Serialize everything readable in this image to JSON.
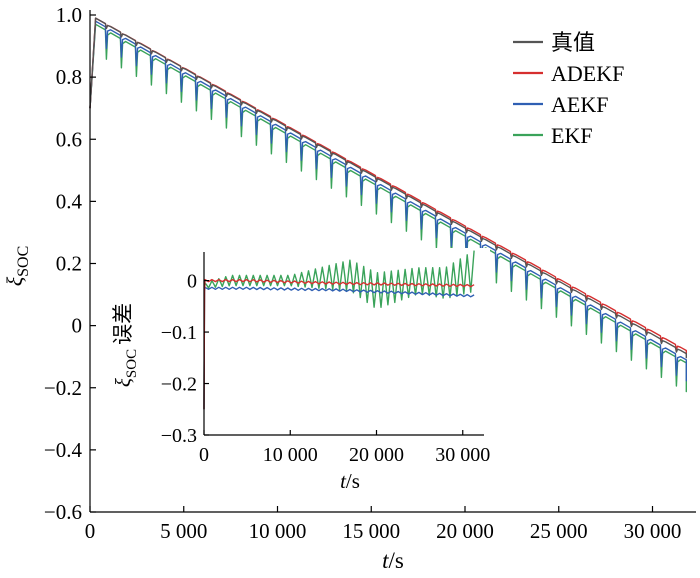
{
  "chart_data": [
    {
      "id": "main",
      "type": "line",
      "title": "",
      "xlabel": {
        "italic": "t",
        "rest": "/s"
      },
      "ylabel": {
        "symbol": "ξ",
        "subscript": "SOC"
      },
      "xlim": [
        0,
        32000
      ],
      "ylim": [
        -0.6,
        1.0
      ],
      "xticks": [
        0,
        5000,
        10000,
        15000,
        20000,
        25000,
        30000
      ],
      "xtick_labels": [
        "0",
        "5 000",
        "10 000",
        "15 000",
        "20 000",
        "25 000",
        "30 000"
      ],
      "yticks": [
        1.0,
        0.8,
        0.6,
        0.4,
        0.2,
        0,
        -0.2,
        -0.4,
        -0.6
      ],
      "ytick_labels": [
        "1.0",
        "0.8",
        "0.6",
        "0.4",
        "0.2",
        "0",
        "−0.2",
        "−0.4",
        "−0.6"
      ],
      "grid": false,
      "legend": "top-right",
      "cycle_period_s": 800,
      "series": [
        {
          "name": "真值",
          "color": "#555555",
          "x": [
            0,
            300,
            31800
          ],
          "y": [
            0.7,
            0.99,
            -0.09
          ]
        },
        {
          "name": "ADEKF",
          "color": "#d62f2f",
          "x": [
            0,
            300,
            31800
          ],
          "y": [
            0.7,
            0.99,
            -0.08
          ]
        },
        {
          "name": "AEKF",
          "color": "#2f5fb3",
          "x": [
            0,
            300,
            31800
          ],
          "y": [
            0.7,
            0.98,
            -0.11
          ]
        },
        {
          "name": "EKF",
          "color": "#3aa35a",
          "x": [
            0,
            300,
            31800
          ],
          "y": [
            0.7,
            0.97,
            -0.12
          ]
        }
      ]
    },
    {
      "id": "inset",
      "type": "line",
      "title": "",
      "xlabel": {
        "italic": "t",
        "rest": "/s"
      },
      "ylabel": {
        "symbol": "ξ",
        "subscript": "SOC",
        "suffix": "误差"
      },
      "xlim": [
        0,
        32000
      ],
      "ylim": [
        -0.3,
        0.04
      ],
      "xticks": [
        0,
        10000,
        20000,
        30000
      ],
      "xtick_labels": [
        "0",
        "10 000",
        "20 000",
        "30 000"
      ],
      "yticks": [
        0,
        -0.1,
        -0.2,
        -0.3
      ],
      "ytick_labels": [
        "0",
        "−0.1",
        "−0.2",
        "−0.3"
      ],
      "grid": false,
      "series": [
        {
          "name": "ADEKF",
          "color": "#d62f2f",
          "x": [
            0,
            5000,
            15000,
            25000,
            31500
          ],
          "y": [
            0.0,
            0.0,
            -0.005,
            -0.008,
            -0.01
          ]
        },
        {
          "name": "AEKF",
          "color": "#2f5fb3",
          "x": [
            0,
            5000,
            15000,
            25000,
            31500
          ],
          "y": [
            -0.015,
            -0.015,
            -0.018,
            -0.025,
            -0.03
          ]
        },
        {
          "name": "EKF",
          "color": "#3aa35a",
          "x": [
            0,
            3000,
            10000,
            17000,
            20000,
            25000,
            28000,
            31500
          ],
          "y": [
            -0.01,
            0.0,
            0.0,
            0.01,
            -0.02,
            0.0,
            -0.005,
            0.02
          ],
          "ripple": [
            0.005,
            0.01,
            0.01,
            0.03,
            0.035,
            0.025,
            0.03,
            0.04
          ]
        }
      ]
    }
  ]
}
